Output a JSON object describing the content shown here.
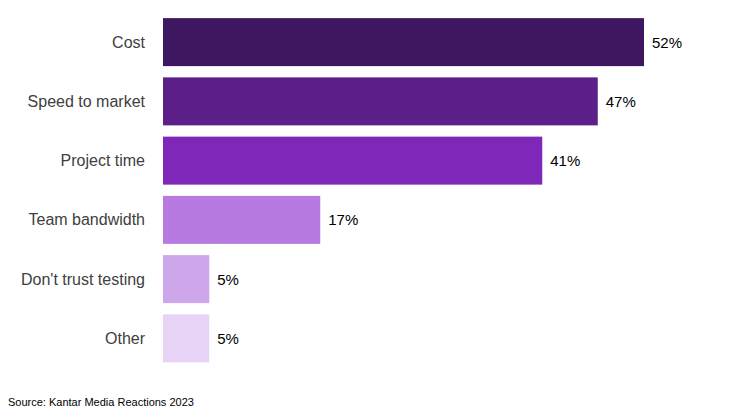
{
  "chart_data": {
    "type": "bar",
    "orientation": "horizontal",
    "categories": [
      "Cost",
      "Speed to market",
      "Project time",
      "Team bandwidth",
      "Don't trust testing",
      "Other"
    ],
    "values": [
      52,
      47,
      41,
      17,
      5,
      5
    ],
    "value_labels": [
      "52%",
      "47%",
      "41%",
      "17%",
      "5%",
      "5%"
    ],
    "colors": [
      "#3f1660",
      "#5c1f8a",
      "#7f27b8",
      "#b67ae0",
      "#cea6ea",
      "#e7d3f6"
    ],
    "xlim": [
      0,
      52
    ],
    "data_labels": true,
    "tick_labels": false,
    "grid": false,
    "source": "Source: Kantar Media Reactions 2023"
  }
}
